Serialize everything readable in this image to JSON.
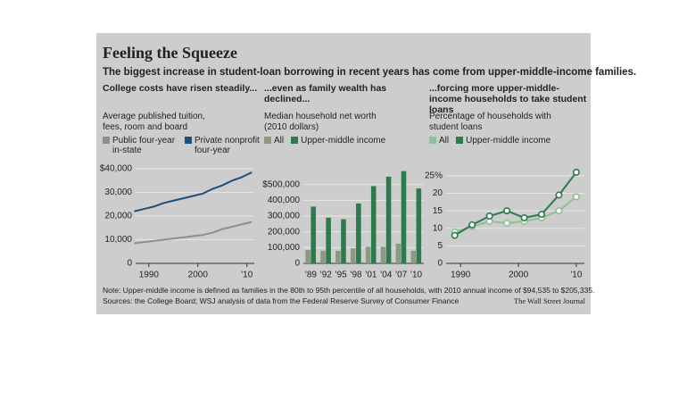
{
  "title": "Feeling the Squeeze",
  "subtitle": "The biggest increase in student-loan borrowing in recent years has come from upper-middle-income families.",
  "note": "Note: Upper-middle income is defined as families in the 80th to 95th percentile of all households, with 2010 annual income of $94,535 to $205,335.",
  "sources": "Sources: the College Board; WSJ analysis of data from the Federal Reserve Survey of Consumer Finance",
  "credit": "The Wall Street Journal",
  "chart_data": [
    {
      "type": "line",
      "header": "College costs have risen steadily...",
      "description": "Average published tuition, fees, room and board",
      "x": [
        1987,
        1989,
        1991,
        1993,
        1995,
        1997,
        1999,
        2001,
        2003,
        2005,
        2007,
        2009,
        2011
      ],
      "series": [
        {
          "name": "Public four-year in-state",
          "color": "#8e8e8e",
          "values": [
            8500,
            9000,
            9500,
            10000,
            10500,
            11000,
            11500,
            12000,
            13000,
            14500,
            15500,
            16500,
            17500
          ]
        },
        {
          "name": "Private nonprofit four-year",
          "color": "#1f4f78",
          "values": [
            22000,
            23000,
            24000,
            25500,
            26500,
            27500,
            28500,
            29500,
            31500,
            33000,
            35000,
            36500,
            38500
          ]
        }
      ],
      "xlim": [
        1987.3,
        2011.5
      ],
      "xticks": [
        1990,
        2000,
        {
          "value": 2010,
          "label": "'10"
        }
      ],
      "ylim": [
        0,
        40000
      ],
      "yticks": [
        0,
        {
          "value": 10000,
          "label": "10,000"
        },
        {
          "value": 20000,
          "label": "20,000"
        },
        {
          "value": 30000,
          "label": "30,000"
        },
        {
          "value": 40000,
          "label": "$40,000"
        }
      ],
      "grid": true
    },
    {
      "type": "bar",
      "header": "...even as family wealth has declined...",
      "description": "Median household net worth (2010 dollars)",
      "categories": [
        "'89",
        "'92",
        "'95",
        "'98",
        "'01",
        "'04",
        "'07",
        "'10"
      ],
      "series": [
        {
          "name": "All",
          "color": "#8a9a80",
          "values": [
            85000,
            80000,
            80000,
            95000,
            105000,
            105000,
            125000,
            80000
          ]
        },
        {
          "name": "Upper-middle income",
          "color": "#2d7a4c",
          "values": [
            360000,
            290000,
            280000,
            380000,
            490000,
            550000,
            585000,
            475000
          ]
        }
      ],
      "ylim": [
        0,
        600000
      ],
      "yticks": [
        0,
        {
          "value": 100000,
          "label": "100,000"
        },
        {
          "value": 200000,
          "label": "200,000"
        },
        {
          "value": 300000,
          "label": "300,000"
        },
        {
          "value": 400000,
          "label": "400,000"
        },
        {
          "value": 500000,
          "label": "$500,000"
        }
      ],
      "grid": true
    },
    {
      "type": "line",
      "header": "...forcing more upper-middle-income households to take student loans",
      "description": "Percentage of households with student loans",
      "markers": true,
      "x": [
        1989,
        1992,
        1995,
        1998,
        2001,
        2004,
        2007,
        2010
      ],
      "series": [
        {
          "name": "All",
          "color": "#8fbf94",
          "values": [
            9,
            10.5,
            12,
            11.5,
            12,
            13,
            15,
            19
          ]
        },
        {
          "name": "Upper-middle income",
          "color": "#2d7a4c",
          "values": [
            8,
            11,
            13.5,
            15,
            13,
            14,
            19.5,
            26
          ]
        }
      ],
      "xlim": [
        1987.5,
        2011.4
      ],
      "xticks": [
        1990,
        2000,
        {
          "value": 2010,
          "label": "'10"
        }
      ],
      "ylim": [
        0,
        27
      ],
      "yticks": [
        0,
        5,
        10,
        15,
        20,
        {
          "value": 25,
          "label": "25%"
        }
      ],
      "grid": true
    }
  ]
}
